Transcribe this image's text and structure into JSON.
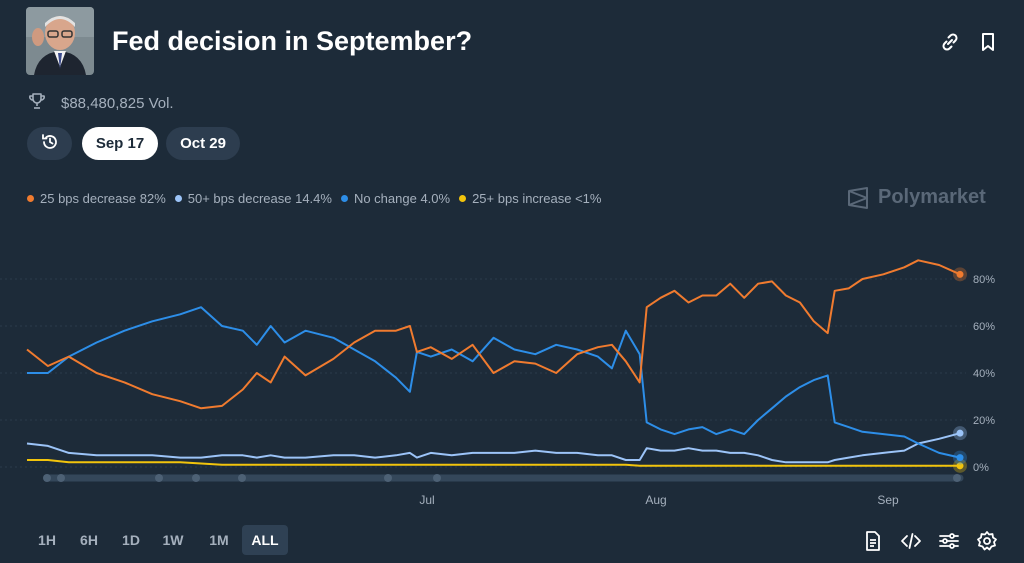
{
  "market": {
    "title": "Fed decision in September?",
    "volume": "$88,480,825 Vol."
  },
  "icons": {
    "link": "link-icon",
    "bookmark": "bookmark-icon",
    "trophy": "trophy-icon",
    "history": "history-icon",
    "brand": "polymarket-logo-icon",
    "rules": "document-icon",
    "embed": "code-icon",
    "controls": "sliders-icon",
    "settings": "gear-icon"
  },
  "date_tabs": [
    {
      "label": "Sep 17",
      "active": true
    },
    {
      "label": "Oct 29",
      "active": false
    }
  ],
  "brand": {
    "name": "Polymarket"
  },
  "time_ranges": [
    {
      "label": "1H",
      "active": false
    },
    {
      "label": "6H",
      "active": false
    },
    {
      "label": "1D",
      "active": false
    },
    {
      "label": "1W",
      "active": false
    },
    {
      "label": "1M",
      "active": false
    },
    {
      "label": "ALL",
      "active": true
    }
  ],
  "chart_data": {
    "type": "line",
    "x_ticks": [
      "Jul",
      "Aug",
      "Sep"
    ],
    "y_ticks": [
      "80%",
      "60%",
      "40%",
      "20%",
      "0%"
    ],
    "ylim": [
      0,
      100
    ],
    "grid": true,
    "legend_position": "top-left",
    "series": [
      {
        "name": "25 bps decrease",
        "legend": "25 bps decrease 82%",
        "color": "#f07b2f",
        "points": [
          [
            0,
            50
          ],
          [
            3,
            43
          ],
          [
            6,
            47
          ],
          [
            10,
            40
          ],
          [
            14,
            36
          ],
          [
            18,
            31
          ],
          [
            22,
            28
          ],
          [
            25,
            25
          ],
          [
            28,
            26
          ],
          [
            31,
            33
          ],
          [
            33,
            40
          ],
          [
            35,
            36
          ],
          [
            37,
            47
          ],
          [
            40,
            39
          ],
          [
            44,
            46
          ],
          [
            47,
            53
          ],
          [
            50,
            58
          ],
          [
            53,
            58
          ],
          [
            55,
            60
          ],
          [
            56,
            49
          ],
          [
            58,
            51
          ],
          [
            61,
            46
          ],
          [
            64,
            52
          ],
          [
            67,
            40
          ],
          [
            70,
            45
          ],
          [
            73,
            44
          ],
          [
            76,
            40
          ],
          [
            79,
            48
          ],
          [
            82,
            51
          ],
          [
            84,
            52
          ],
          [
            86,
            45
          ],
          [
            88,
            36
          ],
          [
            89,
            68
          ],
          [
            91,
            72
          ],
          [
            93,
            75
          ],
          [
            95,
            70
          ],
          [
            97,
            73
          ],
          [
            99,
            73
          ],
          [
            101,
            78
          ],
          [
            103,
            72
          ],
          [
            105,
            78
          ],
          [
            107,
            79
          ],
          [
            109,
            73
          ],
          [
            111,
            70
          ],
          [
            113,
            62
          ],
          [
            115,
            57
          ],
          [
            116,
            75
          ],
          [
            118,
            76
          ],
          [
            120,
            80
          ],
          [
            123,
            82
          ],
          [
            126,
            85
          ],
          [
            128,
            88
          ],
          [
            131,
            86
          ],
          [
            134,
            82
          ]
        ]
      },
      {
        "name": "No change",
        "legend": "No change 4.0%",
        "color": "#2d8ee8",
        "points": [
          [
            0,
            40
          ],
          [
            3,
            40
          ],
          [
            6,
            47
          ],
          [
            10,
            53
          ],
          [
            14,
            58
          ],
          [
            18,
            62
          ],
          [
            22,
            65
          ],
          [
            25,
            68
          ],
          [
            28,
            60
          ],
          [
            31,
            58
          ],
          [
            33,
            52
          ],
          [
            35,
            60
          ],
          [
            37,
            53
          ],
          [
            40,
            58
          ],
          [
            44,
            55
          ],
          [
            47,
            50
          ],
          [
            50,
            45
          ],
          [
            53,
            38
          ],
          [
            55,
            32
          ],
          [
            56,
            49
          ],
          [
            58,
            47
          ],
          [
            61,
            50
          ],
          [
            64,
            45
          ],
          [
            67,
            55
          ],
          [
            70,
            50
          ],
          [
            73,
            48
          ],
          [
            76,
            52
          ],
          [
            79,
            50
          ],
          [
            82,
            47
          ],
          [
            84,
            42
          ],
          [
            86,
            58
          ],
          [
            88,
            48
          ],
          [
            89,
            19
          ],
          [
            91,
            16
          ],
          [
            93,
            14
          ],
          [
            95,
            16
          ],
          [
            97,
            17
          ],
          [
            99,
            14
          ],
          [
            101,
            16
          ],
          [
            103,
            14
          ],
          [
            105,
            20
          ],
          [
            107,
            25
          ],
          [
            109,
            30
          ],
          [
            111,
            34
          ],
          [
            113,
            37
          ],
          [
            115,
            39
          ],
          [
            116,
            19
          ],
          [
            118,
            17
          ],
          [
            120,
            15
          ],
          [
            123,
            14
          ],
          [
            126,
            13
          ],
          [
            128,
            10
          ],
          [
            131,
            6
          ],
          [
            134,
            4
          ]
        ]
      },
      {
        "name": "50+ bps decrease",
        "legend": "50+ bps decrease 14.4%",
        "color": "#9cc4f8",
        "points": [
          [
            0,
            10
          ],
          [
            3,
            9
          ],
          [
            6,
            6
          ],
          [
            10,
            5
          ],
          [
            14,
            5
          ],
          [
            18,
            5
          ],
          [
            22,
            4
          ],
          [
            25,
            4
          ],
          [
            28,
            5
          ],
          [
            31,
            5
          ],
          [
            33,
            4
          ],
          [
            35,
            5
          ],
          [
            37,
            4
          ],
          [
            40,
            4
          ],
          [
            44,
            5
          ],
          [
            47,
            5
          ],
          [
            50,
            4
          ],
          [
            53,
            5
          ],
          [
            55,
            6
          ],
          [
            56,
            4
          ],
          [
            58,
            6
          ],
          [
            61,
            5
          ],
          [
            64,
            6
          ],
          [
            67,
            6
          ],
          [
            70,
            6
          ],
          [
            73,
            7
          ],
          [
            76,
            6
          ],
          [
            79,
            6
          ],
          [
            82,
            5
          ],
          [
            84,
            5
          ],
          [
            86,
            3
          ],
          [
            88,
            3
          ],
          [
            89,
            8
          ],
          [
            91,
            7
          ],
          [
            93,
            7
          ],
          [
            95,
            8
          ],
          [
            97,
            7
          ],
          [
            99,
            7
          ],
          [
            101,
            6
          ],
          [
            103,
            6
          ],
          [
            105,
            5
          ],
          [
            107,
            3
          ],
          [
            109,
            2
          ],
          [
            111,
            2
          ],
          [
            113,
            2
          ],
          [
            115,
            2
          ],
          [
            116,
            3
          ],
          [
            118,
            4
          ],
          [
            120,
            5
          ],
          [
            123,
            6
          ],
          [
            126,
            7
          ],
          [
            128,
            10
          ],
          [
            131,
            12
          ],
          [
            134,
            14.4
          ]
        ]
      },
      {
        "name": "25+ bps increase",
        "legend": "25+ bps increase <1%",
        "color": "#f2c40c",
        "points": [
          [
            0,
            3
          ],
          [
            3,
            3
          ],
          [
            6,
            2
          ],
          [
            10,
            2
          ],
          [
            14,
            2
          ],
          [
            18,
            2
          ],
          [
            22,
            2
          ],
          [
            25,
            1.5
          ],
          [
            28,
            1
          ],
          [
            31,
            1
          ],
          [
            33,
            1
          ],
          [
            35,
            1
          ],
          [
            37,
            1
          ],
          [
            40,
            1
          ],
          [
            44,
            1
          ],
          [
            47,
            1
          ],
          [
            50,
            1
          ],
          [
            53,
            1
          ],
          [
            55,
            1
          ],
          [
            56,
            1
          ],
          [
            58,
            1
          ],
          [
            61,
            1
          ],
          [
            64,
            1
          ],
          [
            67,
            1
          ],
          [
            70,
            1
          ],
          [
            73,
            1
          ],
          [
            76,
            1
          ],
          [
            79,
            1
          ],
          [
            82,
            1
          ],
          [
            84,
            1
          ],
          [
            86,
            1
          ],
          [
            88,
            0.5
          ],
          [
            89,
            0.5
          ],
          [
            91,
            0.5
          ],
          [
            93,
            0.5
          ],
          [
            95,
            0.5
          ],
          [
            97,
            0.5
          ],
          [
            99,
            0.5
          ],
          [
            101,
            0.5
          ],
          [
            103,
            0.5
          ],
          [
            105,
            0.5
          ],
          [
            107,
            0.5
          ],
          [
            109,
            0.5
          ],
          [
            111,
            0.5
          ],
          [
            113,
            0.5
          ],
          [
            115,
            0.5
          ],
          [
            116,
            0.5
          ],
          [
            118,
            0.5
          ],
          [
            120,
            0.5
          ],
          [
            123,
            0.5
          ],
          [
            126,
            0.5
          ],
          [
            128,
            0.5
          ],
          [
            131,
            0.5
          ],
          [
            134,
            0.5
          ]
        ]
      }
    ]
  }
}
